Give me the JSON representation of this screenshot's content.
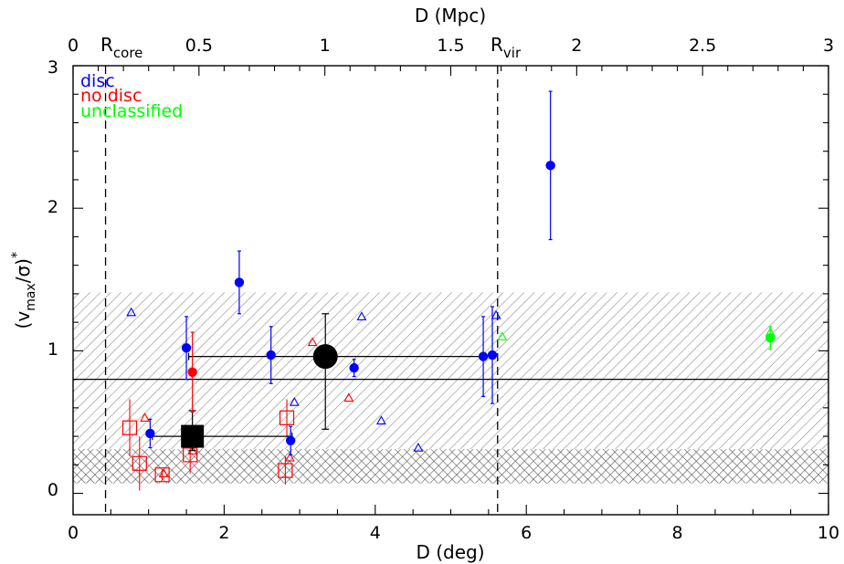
{
  "chart_data": {
    "type": "scatter",
    "xlabel": "D (deg)",
    "ylabel_main": "(v",
    "ylabel_sub": "max",
    "ylabel_mid": "/σ)",
    "ylabel_sup": "*",
    "top_xlabel": "D (Mpc)",
    "xlim": [
      0,
      10
    ],
    "ylim": [
      -0.15,
      3.0
    ],
    "top_xlim_mpc": [
      0,
      3
    ],
    "xticks": [
      "0",
      "2",
      "4",
      "6",
      "8",
      "10"
    ],
    "yticks": [
      "0",
      "1",
      "2",
      "3"
    ],
    "top_xticks": [
      "0",
      "0.5",
      "1",
      "1.5",
      "2",
      "2.5",
      "3"
    ],
    "grid": false,
    "legend_position": "top-left",
    "legend": [
      {
        "label": "disc",
        "color": "#0000ff"
      },
      {
        "label": "no disc",
        "color": "#ff0000"
      },
      {
        "label": "unclassified",
        "color": "#00ff00"
      }
    ],
    "reference_lines": {
      "r_core": {
        "x": 0.43,
        "label_main": "R",
        "label_sub": "core"
      },
      "r_vir": {
        "x": 5.62,
        "label_main": "R",
        "label_sub": "vir"
      },
      "mean_level": 0.8
    },
    "bands": {
      "wide_hatched": [
        0.07,
        1.41
      ],
      "narrow_crosshatched": [
        0.07,
        0.31
      ]
    },
    "series": [
      {
        "name": "disc",
        "color": "#0000ff",
        "points": [
          {
            "x": 1.02,
            "y": 0.42,
            "err": 0.1
          },
          {
            "x": 1.5,
            "y": 1.02,
            "err": 0.22
          },
          {
            "x": 2.2,
            "y": 1.48,
            "err": 0.22
          },
          {
            "x": 2.62,
            "y": 0.97,
            "err": 0.2
          },
          {
            "x": 2.88,
            "y": 0.37,
            "err": 0.1
          },
          {
            "x": 3.72,
            "y": 0.88,
            "err": 0.06
          },
          {
            "x": 5.43,
            "y": 0.96,
            "err": 0.28
          },
          {
            "x": 5.55,
            "y": 0.97,
            "err": 0.34
          },
          {
            "x": 6.32,
            "y": 2.3,
            "err": 0.52
          }
        ]
      },
      {
        "name": "no disc",
        "color": "#ff0000",
        "points": [
          {
            "x": 1.58,
            "y": 0.85,
            "err": 0.28
          }
        ]
      },
      {
        "name": "unclassified",
        "color": "#00ff00",
        "points": [
          {
            "x": 9.23,
            "y": 1.09,
            "err": 0.08
          }
        ]
      }
    ],
    "triangles": [
      {
        "x": 0.77,
        "y": 1.27,
        "color": "#0000ff"
      },
      {
        "x": 0.95,
        "y": 0.53,
        "color": "#ff0000"
      },
      {
        "x": 1.2,
        "y": 0.14,
        "color": "#ff0000"
      },
      {
        "x": 1.58,
        "y": 0.3,
        "color": "#ff0000"
      },
      {
        "x": 2.87,
        "y": 0.25,
        "color": "#ff0000"
      },
      {
        "x": 2.93,
        "y": 0.64,
        "color": "#0000ff"
      },
      {
        "x": 3.17,
        "y": 1.06,
        "color": "#ff0000"
      },
      {
        "x": 3.65,
        "y": 0.67,
        "color": "#ff0000"
      },
      {
        "x": 3.82,
        "y": 1.24,
        "color": "#0000ff"
      },
      {
        "x": 4.08,
        "y": 0.51,
        "color": "#0000ff"
      },
      {
        "x": 4.57,
        "y": 0.32,
        "color": "#0000ff"
      },
      {
        "x": 5.6,
        "y": 1.25,
        "color": "#0000ff"
      },
      {
        "x": 5.68,
        "y": 1.1,
        "color": "#00ff00"
      },
      {
        "x": 9.23,
        "y": 1.13,
        "color": "#00ff00"
      }
    ],
    "open_squares": [
      {
        "x": 0.75,
        "y": 0.46,
        "err": 0.2
      },
      {
        "x": 0.88,
        "y": 0.21,
        "err": 0.19
      },
      {
        "x": 1.18,
        "y": 0.13,
        "err": 0.04
      },
      {
        "x": 1.55,
        "y": 0.27,
        "err": 0.13
      },
      {
        "x": 2.83,
        "y": 0.53,
        "err": 0.13
      },
      {
        "x": 2.81,
        "y": 0.16,
        "err": 0.1
      }
    ],
    "mean_points": [
      {
        "shape": "circle",
        "x": 3.34,
        "y": 0.96,
        "xmin": 1.53,
        "xmax": 5.43,
        "ymin": 0.45,
        "ymax": 1.26
      },
      {
        "shape": "square",
        "x": 1.58,
        "y": 0.4,
        "xmin": 1.05,
        "xmax": 2.9,
        "ymin": 0.3,
        "ymax": 0.58
      }
    ]
  }
}
